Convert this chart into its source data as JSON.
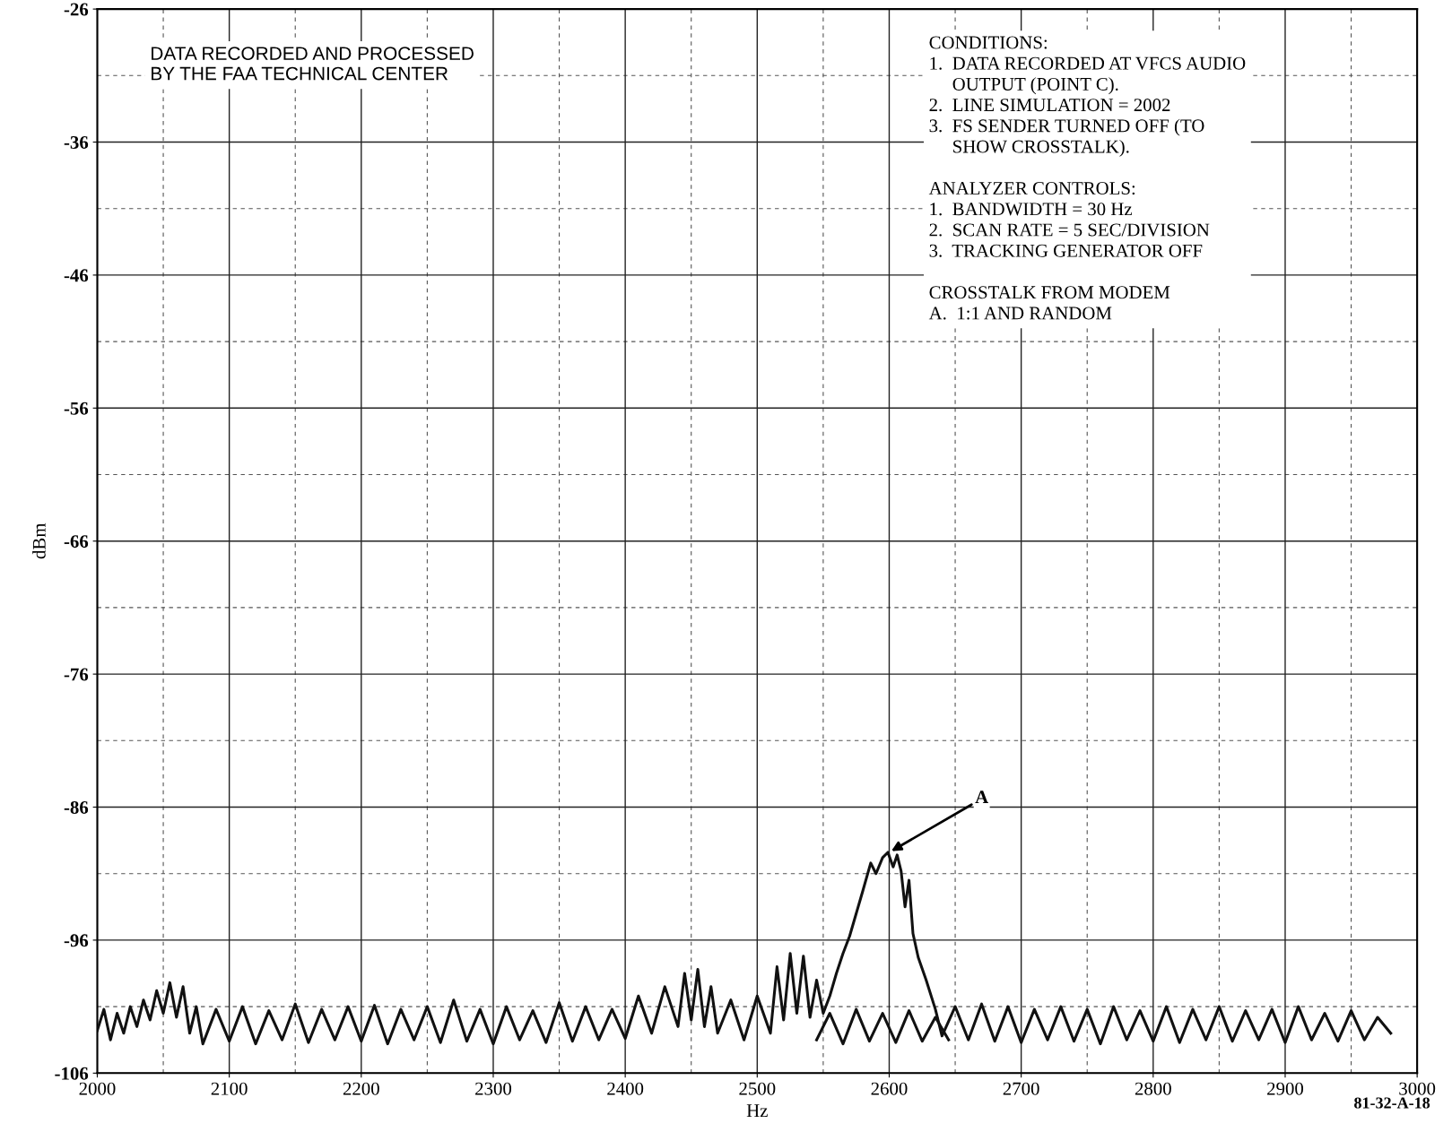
{
  "chart_data": {
    "type": "line",
    "xlabel": "Hz",
    "ylabel": "dBm",
    "xlim": [
      2000,
      3000
    ],
    "xticks": [
      2000,
      2100,
      2200,
      2300,
      2400,
      2500,
      2600,
      2700,
      2800,
      2900,
      3000
    ],
    "ylim": [
      -106,
      -26
    ],
    "yticks": [
      -26,
      -36,
      -46,
      -56,
      -66,
      -76,
      -86,
      -96,
      -106
    ],
    "grid": true,
    "line_style": "solid",
    "marker": "none",
    "series": [
      {
        "color": "#111111",
        "x": [
          2000,
          2005,
          2010,
          2015,
          2020,
          2025,
          2030,
          2035,
          2040,
          2045,
          2050,
          2055,
          2060,
          2065,
          2070,
          2075,
          2080,
          2090,
          2100,
          2110,
          2120,
          2130,
          2140,
          2150,
          2160,
          2170,
          2180,
          2190,
          2200,
          2210,
          2220,
          2230,
          2240,
          2250,
          2260,
          2270,
          2280,
          2290,
          2300,
          2310,
          2320,
          2330,
          2340,
          2350,
          2360,
          2370,
          2380,
          2390,
          2400,
          2410,
          2420,
          2430,
          2440,
          2445,
          2450,
          2455,
          2460,
          2465,
          2470,
          2480,
          2490,
          2500,
          2510,
          2515,
          2520,
          2525,
          2530,
          2535,
          2540,
          2545,
          2550,
          2555,
          2560,
          2565,
          2570,
          2575,
          2580,
          2586,
          2590,
          2595,
          2599,
          2603,
          2606,
          2609,
          2612,
          2615,
          2618,
          2622,
          2628,
          2635,
          2640,
          2650,
          2660,
          2670,
          2680,
          2690,
          2700,
          2710,
          2720,
          2730,
          2740,
          2750,
          2760,
          2770,
          2780,
          2790,
          2800,
          2810,
          2820,
          2830,
          2840,
          2850,
          2860,
          2870,
          2880,
          2890,
          2900,
          2910,
          2920,
          2930,
          2940,
          2950,
          2960,
          2970,
          2980
        ],
        "values": [
          -102.8,
          -101.2,
          -103.5,
          -101.5,
          -103.0,
          -101.0,
          -102.5,
          -100.5,
          -102.0,
          -99.8,
          -101.5,
          -99.2,
          -101.8,
          -99.5,
          -103.0,
          -101.0,
          -103.8,
          -101.2,
          -103.6,
          -101.0,
          -103.8,
          -101.3,
          -103.5,
          -100.8,
          -103.7,
          -101.2,
          -103.5,
          -101.0,
          -103.6,
          -100.9,
          -103.8,
          -101.2,
          -103.5,
          -101.0,
          -103.7,
          -100.5,
          -103.6,
          -101.2,
          -103.8,
          -101.0,
          -103.5,
          -101.3,
          -103.7,
          -100.7,
          -103.6,
          -101.0,
          -103.5,
          -101.2,
          -103.4,
          -100.2,
          -103.0,
          -99.5,
          -102.5,
          -98.5,
          -102.0,
          -98.2,
          -102.5,
          -99.5,
          -103.0,
          -100.5,
          -103.5,
          -100.2,
          -103.0,
          -98.0,
          -102.0,
          -97.0,
          -101.5,
          -97.2,
          -101.8,
          -99.0,
          -101.5,
          -100.2,
          -98.5,
          -97.0,
          -95.7,
          -94.0,
          -92.3,
          -90.2,
          -91.0,
          -89.8,
          -89.4,
          -90.5,
          -89.6,
          -90.8,
          -93.5,
          -91.5,
          -95.5,
          -97.3,
          -99.0,
          -101.2,
          -103.2,
          -101.0,
          -103.5,
          -100.8,
          -103.6,
          -101.0,
          -103.7,
          -101.2,
          -103.5,
          -101.0,
          -103.6,
          -101.2,
          -103.8,
          -101.0,
          -103.5,
          -101.3,
          -103.6,
          -101.0,
          -103.7,
          -101.2,
          -103.5,
          -101.0,
          -103.6,
          -101.3,
          -103.5,
          -101.2,
          -103.7,
          -101.0,
          -103.5,
          -101.5,
          -103.6,
          -101.3,
          -103.5,
          -101.8,
          -103.0
        ]
      },
      {
        "color": "#111111",
        "x": [
          2545,
          2555,
          2565,
          2575,
          2585,
          2595,
          2605,
          2615,
          2625,
          2635,
          2645
        ],
        "values": [
          -103.5,
          -101.5,
          -103.8,
          -101.2,
          -103.6,
          -101.5,
          -103.7,
          -101.3,
          -103.6,
          -101.8,
          -103.5
        ]
      }
    ],
    "annotations": [
      "DATA RECORDED AND PROCESSED\nBY THE FAA TECHNICAL CENTER",
      "CONDITIONS:\n1.  DATA RECORDED AT VFCS AUDIO\n     OUTPUT (POINT C).\n2.  LINE SIMULATION = 2002\n3.  FS SENDER TURNED OFF (TO\n     SHOW CROSSTALK).\n\nANALYZER CONTROLS:\n1.  BANDWIDTH = 30 Hz\n2.  SCAN RATE = 5 SEC/DIVISION\n3.  TRACKING GENERATOR OFF\n\nCROSSTALK FROM MODEM\nA.  1:1 AND RANDOM",
      {
        "text": "A",
        "x": 2600,
        "y": -89.4
      },
      "81-32-A-18"
    ]
  }
}
